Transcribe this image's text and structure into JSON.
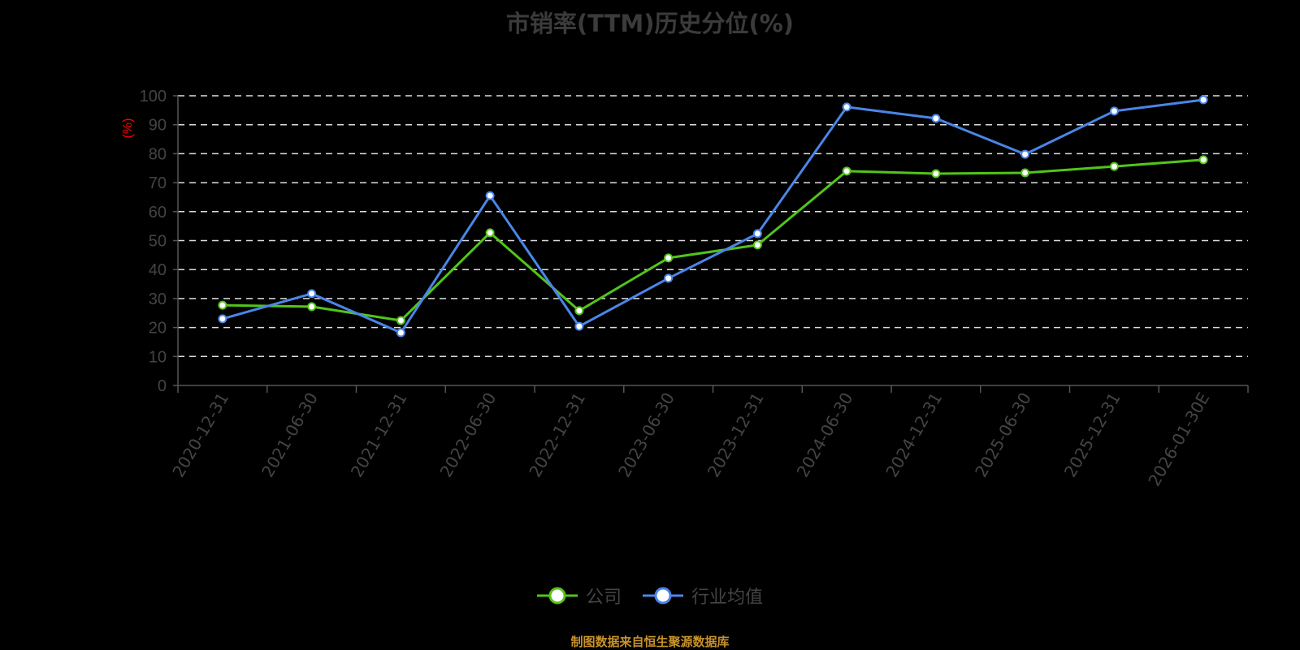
{
  "title": "市销率(TTM)历史分位(%)",
  "footer": "制图数据来自恒生聚源数据库",
  "legend": [
    {
      "label": "公司",
      "color": "#52c41a"
    },
    {
      "label": "行业均值",
      "color": "#4a86e8"
    }
  ],
  "chart_data": {
    "type": "line",
    "title": "市销率(TTM)历史分位(%)",
    "xlabel": "",
    "ylabel": "(%)",
    "ylim": [
      0,
      100
    ],
    "yticks": [
      0,
      10,
      20,
      30,
      40,
      50,
      60,
      70,
      80,
      90,
      100
    ],
    "grid": true,
    "legend_position": "bottom",
    "categories": [
      "2020-12-31",
      "2021-06-30",
      "2021-12-31",
      "2022-06-30",
      "2022-12-31",
      "2023-06-30",
      "2023-12-31",
      "2024-06-30",
      "2024-12-31",
      "2025-06-30",
      "2025-12-31",
      "2026-01-30E"
    ],
    "series": [
      {
        "name": "公司",
        "color": "#52c41a",
        "values": [
          27.7,
          27.2,
          22.4,
          52.7,
          25.8,
          44.0,
          48.5,
          74.0,
          73.1,
          73.4,
          75.6,
          77.9
        ]
      },
      {
        "name": "行业均值",
        "color": "#4a86e8",
        "values": [
          23.0,
          31.7,
          18.2,
          65.5,
          20.4,
          37.0,
          52.4,
          96.1,
          92.2,
          79.8,
          94.7,
          98.6
        ]
      }
    ]
  },
  "colors": {
    "axis": "#555555",
    "tick_label": "#444444",
    "grid": "#dddddd",
    "ylabel": "#ff0000",
    "footer": "#c8922a"
  }
}
